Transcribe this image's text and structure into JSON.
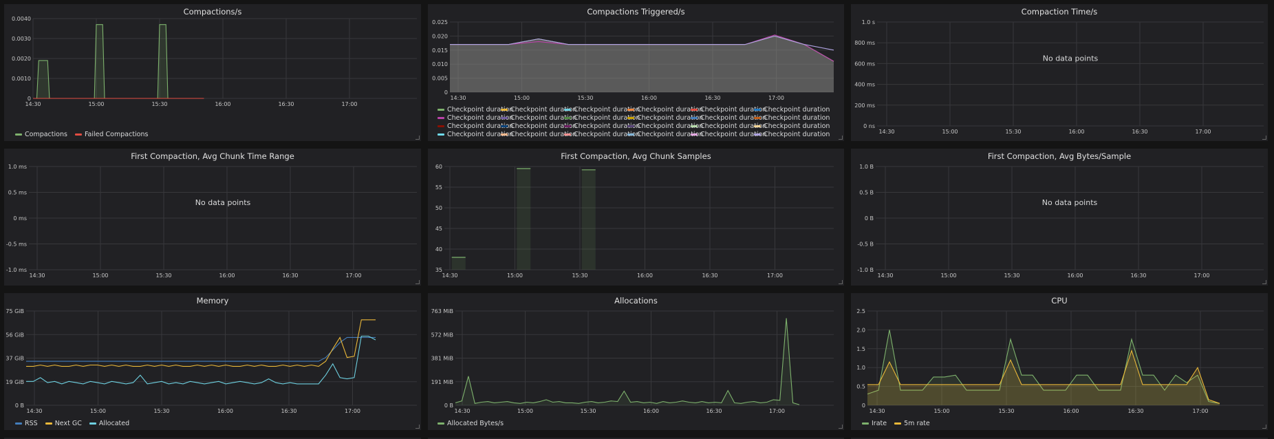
{
  "time_ticks": [
    "14:30",
    "15:00",
    "15:30",
    "16:00",
    "16:30",
    "17:00"
  ],
  "no_data_text": "No data points",
  "panels": {
    "compactions": {
      "title": "Compactions/s",
      "yticks": [
        "0",
        "0.0010",
        "0.0020",
        "0.0030",
        "0.0040"
      ],
      "legend": [
        {
          "label": "Compactions",
          "color": "#7eb26d"
        },
        {
          "label": "Failed Compactions",
          "color": "#e24d42"
        }
      ]
    },
    "triggered": {
      "title": "Compactions Triggered/s",
      "yticks": [
        "0",
        "0.005",
        "0.010",
        "0.015",
        "0.020",
        "0.025"
      ],
      "legend_label": "Checkpoint duration",
      "legend_colors": [
        "#7eb26d",
        "#eab839",
        "#6ed0e0",
        "#ef843c",
        "#e24d42",
        "#1f78c1",
        "#ba43a9",
        "#705da0",
        "#508642",
        "#cca300",
        "#447ebc",
        "#c15c17",
        "#890f02",
        "#0a437c",
        "#6d1f62",
        "#584477",
        "#b7dbab",
        "#f4d598",
        "#70dbed",
        "#f9ba8f",
        "#f29191",
        "#82b5d8",
        "#e5a8e2",
        "#aea2e0"
      ]
    },
    "comp_time": {
      "title": "Compaction Time/s",
      "yticks": [
        "0 ns",
        "200 ms",
        "400 ms",
        "600 ms",
        "800 ms",
        "1.0 s"
      ]
    },
    "chunk_range": {
      "title": "First Compaction, Avg Chunk Time Range",
      "yticks": [
        "-1.0 ms",
        "-0.5 ms",
        "0 ms",
        "0.5 ms",
        "1.0 ms"
      ]
    },
    "chunk_samples": {
      "title": "First Compaction, Avg Chunk Samples",
      "yticks": [
        "35",
        "40",
        "45",
        "50",
        "55",
        "60"
      ]
    },
    "bytes_sample": {
      "title": "First Compaction, Avg Bytes/Sample",
      "yticks": [
        "-1.0 B",
        "-0.5 B",
        "0 B",
        "0.5 B",
        "1.0 B"
      ]
    },
    "memory": {
      "title": "Memory",
      "yticks": [
        "0 B",
        "19 GiB",
        "37 GiB",
        "56 GiB",
        "75 GiB"
      ],
      "legend": [
        {
          "label": "RSS",
          "color": "#447ebc"
        },
        {
          "label": "Next GC",
          "color": "#eab839"
        },
        {
          "label": "Allocated",
          "color": "#6ed0e0"
        }
      ]
    },
    "allocations": {
      "title": "Allocations",
      "yticks": [
        "0 B",
        "191 MiB",
        "381 MiB",
        "572 MiB",
        "763 MiB"
      ],
      "legend": [
        {
          "label": "Allocated Bytes/s",
          "color": "#7eb26d"
        }
      ]
    },
    "cpu": {
      "title": "CPU",
      "yticks": [
        "0",
        "0.5",
        "1.0",
        "1.5",
        "2.0",
        "2.5"
      ],
      "legend": [
        {
          "label": "Irate",
          "color": "#7eb26d"
        },
        {
          "label": "5m rate",
          "color": "#eab839"
        }
      ]
    }
  },
  "chart_data": [
    {
      "type": "area",
      "title": "Compactions/s",
      "x": [
        "14:30",
        "15:00",
        "15:30",
        "16:00",
        "16:30",
        "17:00"
      ],
      "ylim": [
        0,
        0.004
      ],
      "series": [
        {
          "name": "Compactions",
          "points": [
            [
              0,
              0
            ],
            [
              0.06,
              0
            ],
            [
              0.09,
              0.0019
            ],
            [
              0.23,
              0.0019
            ],
            [
              0.26,
              0
            ],
            [
              0.97,
              0
            ],
            [
              1.0,
              0.0037
            ],
            [
              1.1,
              0.0037
            ],
            [
              1.13,
              0
            ],
            [
              1.97,
              0
            ],
            [
              2.0,
              0.0037
            ],
            [
              2.1,
              0.0037
            ],
            [
              2.13,
              0
            ],
            [
              2.7,
              0
            ]
          ]
        },
        {
          "name": "Failed Compactions",
          "points": [
            [
              0,
              0
            ],
            [
              2.7,
              0
            ]
          ]
        }
      ]
    },
    {
      "type": "area",
      "title": "Compactions Triggered/s",
      "ylim": [
        0,
        0.025
      ],
      "series": [
        {
          "name": "Checkpoint duration",
          "values": [
            0.017,
            0.017,
            0.017,
            0.019,
            0.017,
            0.017,
            0.017,
            0.017,
            0.017,
            0.017,
            0.017,
            0.02,
            0.017,
            0.011
          ]
        }
      ]
    },
    {
      "type": "bar",
      "title": "First Compaction, Avg Chunk Samples",
      "ylim": [
        35,
        60
      ],
      "series": [
        {
          "name": "",
          "points": [
            [
              0.05,
              38
            ],
            [
              1.05,
              59.5
            ],
            [
              2.05,
              59.2
            ]
          ]
        }
      ]
    },
    {
      "type": "line",
      "title": "Memory",
      "ylim_gib": [
        0,
        75
      ],
      "series": [
        {
          "name": "RSS",
          "values": [
            35,
            35,
            35,
            35,
            35,
            35,
            35,
            35,
            35,
            35,
            35,
            35,
            35,
            35,
            35,
            35,
            35,
            35,
            35,
            35,
            35,
            35,
            35,
            35,
            35,
            35,
            35,
            35,
            35,
            35,
            35,
            35,
            35,
            35,
            35,
            35,
            35,
            35,
            35,
            35,
            35,
            35,
            38,
            44,
            50,
            54,
            54,
            54,
            54,
            54
          ]
        },
        {
          "name": "Next GC",
          "values": [
            31,
            31,
            32,
            31,
            32,
            31,
            31,
            32,
            31,
            32,
            32,
            31,
            32,
            31,
            32,
            31,
            31,
            32,
            31,
            32,
            31,
            32,
            31,
            31,
            32,
            31,
            32,
            31,
            32,
            31,
            31,
            32,
            31,
            32,
            31,
            31,
            32,
            31,
            32,
            31,
            32,
            31,
            35,
            45,
            54,
            38,
            39,
            68,
            68,
            68
          ]
        },
        {
          "name": "Allocated",
          "values": [
            19,
            19,
            22,
            18,
            19,
            17,
            19,
            18,
            17,
            19,
            18,
            17,
            19,
            18,
            17,
            18,
            24,
            17,
            18,
            19,
            17,
            18,
            17,
            19,
            18,
            17,
            18,
            19,
            17,
            18,
            19,
            18,
            17,
            18,
            21,
            18,
            17,
            18,
            17,
            17,
            17,
            17,
            24,
            33,
            22,
            21,
            22,
            55,
            55,
            52
          ]
        }
      ]
    },
    {
      "type": "line",
      "title": "Allocations",
      "ylim_mib": [
        0,
        763
      ],
      "series": [
        {
          "name": "Allocated Bytes/s",
          "values": [
            20,
            35,
            235,
            15,
            25,
            30,
            20,
            25,
            30,
            20,
            15,
            25,
            20,
            30,
            45,
            25,
            30,
            20,
            20,
            15,
            25,
            30,
            20,
            25,
            35,
            30,
            115,
            25,
            30,
            20,
            25,
            15,
            30,
            20,
            25,
            35,
            25,
            20,
            30,
            20,
            25,
            20,
            120,
            20,
            15,
            25,
            30,
            20,
            25,
            45,
            40,
            705,
            20,
            5
          ]
        }
      ]
    },
    {
      "type": "area",
      "title": "CPU",
      "ylim": [
        0,
        2.5
      ],
      "series": [
        {
          "name": "Irate",
          "values": [
            0.3,
            0.4,
            2.0,
            0.4,
            0.4,
            0.4,
            0.75,
            0.75,
            0.8,
            0.4,
            0.4,
            0.4,
            0.4,
            1.75,
            0.8,
            0.8,
            0.4,
            0.4,
            0.4,
            0.8,
            0.8,
            0.4,
            0.4,
            0.4,
            1.75,
            0.8,
            0.8,
            0.4,
            0.8,
            0.6,
            0.8,
            0.1,
            0.05
          ]
        },
        {
          "name": "5m rate",
          "values": [
            0.55,
            0.55,
            1.15,
            0.55,
            0.55,
            0.55,
            0.55,
            0.55,
            0.55,
            0.55,
            0.55,
            0.55,
            0.55,
            1.2,
            0.55,
            0.55,
            0.55,
            0.55,
            0.55,
            0.55,
            0.55,
            0.55,
            0.55,
            0.55,
            1.45,
            0.55,
            0.55,
            0.55,
            0.55,
            0.55,
            1.0,
            0.15,
            0.05
          ]
        }
      ]
    }
  ]
}
